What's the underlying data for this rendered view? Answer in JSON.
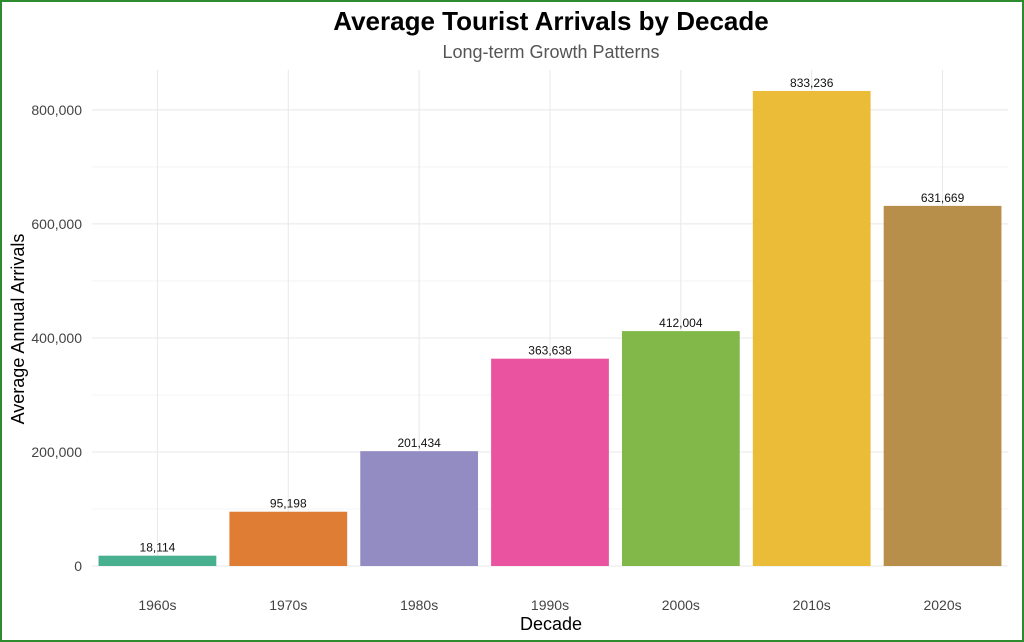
{
  "chart_data": {
    "type": "bar",
    "title": "Average Tourist Arrivals by Decade",
    "subtitle": "Long-term Growth Patterns",
    "xlabel": "Decade",
    "ylabel": "Average Annual Arrivals",
    "categories": [
      "1960s",
      "1970s",
      "1980s",
      "1990s",
      "2000s",
      "2010s",
      "2020s"
    ],
    "values": [
      18114,
      95198,
      201434,
      363638,
      412004,
      833236,
      631669
    ],
    "data_labels": [
      "18,114",
      "95,198",
      "201,434",
      "363,638",
      "412,004",
      "833,236",
      "631,669"
    ],
    "colors": [
      "#49b08f",
      "#e07d34",
      "#928cc3",
      "#ea53a0",
      "#82b84a",
      "#eabc37",
      "#b88f4a"
    ],
    "ylim": [
      0,
      870000
    ],
    "yticks": [
      0,
      200000,
      400000,
      600000,
      800000
    ],
    "ytick_labels": [
      "0",
      "200,000",
      "400,000",
      "600,000",
      "800,000"
    ],
    "grid": true,
    "legend": "none"
  }
}
